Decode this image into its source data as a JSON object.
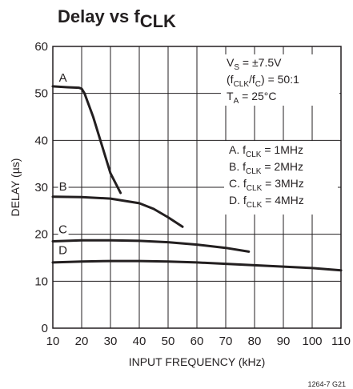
{
  "chart_data": {
    "type": "line",
    "title": {
      "main": "Delay vs f",
      "sub": "CLK"
    },
    "xlabel": "INPUT FREQUENCY (kHz)",
    "ylabel": "DELAY (µs)",
    "xlim": [
      10,
      110
    ],
    "ylim": [
      0,
      60
    ],
    "x_ticks": [
      "10",
      "20",
      "30",
      "40",
      "50",
      "60",
      "70",
      "80",
      "90",
      "100",
      "110"
    ],
    "y_ticks": [
      "0",
      "10",
      "20",
      "30",
      "40",
      "50",
      "60"
    ],
    "grid": true,
    "conditions": [
      {
        "text": "V",
        "sub": "S",
        "after": " = ±7.5V"
      },
      {
        "text": "(f",
        "sub": "CLK",
        "mid": "/f",
        "sub2": "C",
        "after": ") = 50:1"
      },
      {
        "text": "T",
        "sub": "A",
        "after": " = 25°C"
      }
    ],
    "legend": [
      {
        "prefix": "A. f",
        "sub": "CLK",
        "after": " = 1MHz"
      },
      {
        "prefix": "B. f",
        "sub": "CLK",
        "after": " = 2MHz"
      },
      {
        "prefix": "C. f",
        "sub": "CLK",
        "after": " = 3MHz"
      },
      {
        "prefix": "D. f",
        "sub": "CLK",
        "after": " = 4MHz"
      }
    ],
    "series": [
      {
        "name": "A",
        "label_x": 13.5,
        "label_y": 52.5,
        "x": [
          10,
          15,
          19,
          20,
          21,
          24,
          27,
          30,
          33.5
        ],
        "y": [
          51.5,
          51.3,
          51.2,
          51,
          50,
          45,
          39,
          33,
          28.8
        ]
      },
      {
        "name": "B",
        "label_x": 13.5,
        "label_y": 29.3,
        "x": [
          10,
          20,
          30,
          40,
          45,
          50,
          55
        ],
        "y": [
          28.0,
          27.9,
          27.6,
          26.6,
          25.4,
          23.6,
          21.6
        ]
      },
      {
        "name": "C",
        "label_x": 13.5,
        "label_y": 20.2,
        "x": [
          10,
          20,
          30,
          40,
          50,
          60,
          70,
          78
        ],
        "y": [
          18.5,
          18.7,
          18.7,
          18.6,
          18.3,
          17.8,
          17.1,
          16.3
        ]
      },
      {
        "name": "D",
        "label_x": 13.5,
        "label_y": 15.8,
        "x": [
          10,
          20,
          30,
          40,
          50,
          60,
          70,
          80,
          90,
          100,
          110
        ],
        "y": [
          14.0,
          14.2,
          14.3,
          14.3,
          14.2,
          14.0,
          13.7,
          13.4,
          13.1,
          12.8,
          12.3
        ]
      }
    ],
    "figure_id": "1264-7 G21"
  }
}
